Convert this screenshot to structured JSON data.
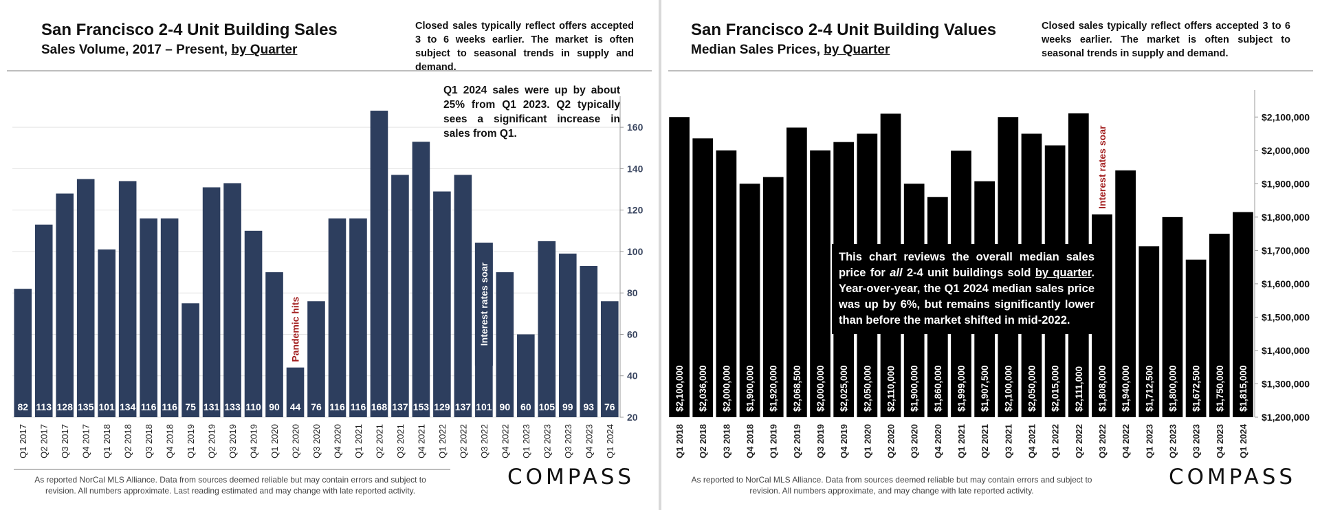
{
  "left": {
    "title": "San Francisco 2-4 Unit Building Sales",
    "subtitle_prefix": "Sales Volume, 2017 – Present, ",
    "subtitle_link": "by Quarter",
    "note": "Closed sales typically reflect offers accepted 3 to 6 weeks earlier. The market is often subject to seasonal trends in supply and demand.",
    "annotation": "Q1 2024 sales were up by about 25% from Q1 2023. Q2 typically sees a significant increase in sales from Q1.",
    "footer": "As reported NorCal MLS Alliance. Data from sources deemed reliable but may contain errors and subject to revision. All numbers approximate.  Last reading estimated and may change with late reported activity.",
    "logo": "COMPASS"
  },
  "right": {
    "title": "San Francisco 2-4 Unit Building Values",
    "subtitle_prefix": "Median Sales Prices, ",
    "subtitle_link": "by Quarter",
    "note": "Closed sales typically reflect offers accepted 3 to 6 weeks earlier. The market is often subject to seasonal trends in supply and demand.",
    "box_text_1": "This chart reviews the overall median sales price for ",
    "box_text_em": "all",
    "box_text_2": " 2-4 unit buildings sold ",
    "box_text_link": "by quarter",
    "box_text_3": ". Year-over-year, the Q1 2024 median sales price was up by 6%, but remains significantly lower than before the market shifted in mid-2022.",
    "footer": "As reported to NorCal MLS Alliance. Data from sources deemed reliable but may contain errors and subject to revision. All numbers approximate, and may change with late reported activity.",
    "logo": "COMPASS"
  },
  "chart_data": [
    {
      "type": "bar",
      "title": "San Francisco 2-4 Unit Building Sales",
      "subtitle": "Sales Volume, 2017 – Present, by Quarter",
      "categories": [
        "Q1 2017",
        "Q2 2017",
        "Q3 2017",
        "Q4 2017",
        "Q1 2018",
        "Q2 2018",
        "Q3 2018",
        "Q4 2018",
        "Q1 2019",
        "Q2 2019",
        "Q3 2019",
        "Q4 2019",
        "Q1 2020",
        "Q2 2020",
        "Q3 2020",
        "Q4 2020",
        "Q1 2021",
        "Q2 2021",
        "Q3 2021",
        "Q4 2021",
        "Q1 2022",
        "Q2 2022",
        "Q3 2022",
        "Q4 2022",
        "Q1 2023",
        "Q2 2023",
        "Q3 2023",
        "Q4 2023",
        "Q1 2024"
      ],
      "values": [
        82,
        113,
        128,
        135,
        101,
        134,
        116,
        116,
        75,
        131,
        133,
        110,
        90,
        44,
        76,
        116,
        116,
        168,
        137,
        153,
        129,
        137,
        101,
        90,
        60,
        105,
        99,
        93,
        76
      ],
      "data_labels": [
        "82",
        "113",
        "128",
        "135",
        "101",
        "134",
        "116",
        "116",
        "75",
        "131",
        "133",
        "110",
        "90",
        "44",
        "76",
        "116",
        "116",
        "168",
        "137",
        "153",
        "129",
        "137",
        "101",
        "90",
        "60",
        "105",
        "99",
        "93",
        "76"
      ],
      "ylim": [
        20,
        170
      ],
      "yticks": [
        20,
        40,
        60,
        80,
        100,
        120,
        140,
        160
      ],
      "ytick_labels": [
        "20",
        "40",
        "60",
        "80",
        "100",
        "120",
        "140",
        "160"
      ],
      "y_axis_side": "right",
      "grid": true,
      "bar_color": "#2d3e5e",
      "annotations": [
        {
          "text": "Pandemic hits",
          "category": "Q2 2020",
          "style": "red-vertical"
        },
        {
          "text": "Interest rates soar",
          "category": "Q3 2022",
          "style": "boxed-vertical"
        }
      ]
    },
    {
      "type": "bar",
      "title": "San Francisco 2-4 Unit Building Values",
      "subtitle": "Median Sales Prices, by Quarter",
      "categories": [
        "Q1 2018",
        "Q2 2018",
        "Q3 2018",
        "Q4 2018",
        "Q1 2019",
        "Q2 2019",
        "Q3 2019",
        "Q4 2019",
        "Q1 2020",
        "Q2 2020",
        "Q3 2020",
        "Q4 2020",
        "Q1 2021",
        "Q2 2021",
        "Q3 2021",
        "Q4 2021",
        "Q1 2022",
        "Q2 2022",
        "Q3 2022",
        "Q4 2022",
        "Q1 2023",
        "Q2 2023",
        "Q3 2023",
        "Q4 2023",
        "Q1 2024"
      ],
      "values": [
        2100000,
        2036000,
        2000000,
        1900000,
        1920000,
        2068500,
        2000000,
        2025000,
        2050000,
        2110000,
        1900000,
        1860000,
        1999000,
        1907500,
        2100000,
        2050000,
        2015000,
        2111000,
        1808000,
        1940000,
        1712500,
        1800000,
        1672500,
        1750000,
        1815000
      ],
      "data_labels": [
        "$2,100,000",
        "$2,036,000",
        "$2,000,000",
        "$1,900,000",
        "$1,920,000",
        "$2,068,500",
        "$2,000,000",
        "$2,025,000",
        "$2,050,000",
        "$2,110,000",
        "$1,900,000",
        "$1,860,000",
        "$1,999,000",
        "$1,907,500",
        "$2,100,000",
        "$2,050,000",
        "$2,015,000",
        "$2,111,000",
        "$1,808,000",
        "$1,940,000",
        "$1,712,500",
        "$1,800,000",
        "$1,672,500",
        "$1,750,000",
        "$1,815,000"
      ],
      "ylim": [
        1200000,
        2150000
      ],
      "yticks": [
        1200000,
        1300000,
        1400000,
        1500000,
        1600000,
        1700000,
        1800000,
        1900000,
        2000000,
        2100000
      ],
      "ytick_labels": [
        "$1,200,000",
        "$1,300,000",
        "$1,400,000",
        "$1,500,000",
        "$1,600,000",
        "$1,700,000",
        "$1,800,000",
        "$1,900,000",
        "$2,000,000",
        "$2,100,000"
      ],
      "y_axis_side": "right",
      "grid": false,
      "bar_color": "#000000",
      "annotations": [
        {
          "text": "Interest rates soar",
          "category": "Q3 2022",
          "style": "red-vertical"
        }
      ]
    }
  ]
}
